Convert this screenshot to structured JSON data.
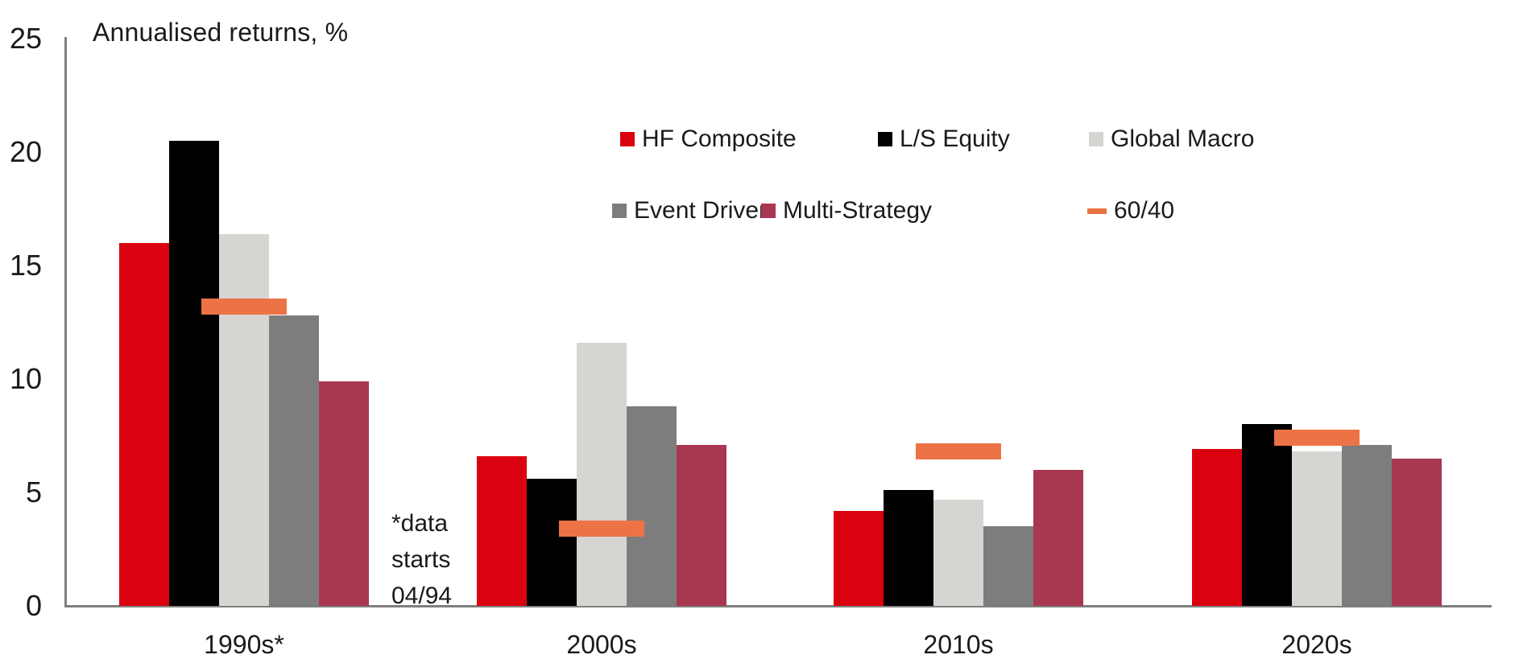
{
  "chart_data": {
    "type": "bar",
    "title": "Annualised returns, %",
    "ylabel": "Annualised returns, %",
    "xlabel": "",
    "ylim": [
      0,
      25
    ],
    "yticks": [
      0,
      5,
      10,
      15,
      20,
      25
    ],
    "grid": false,
    "legend_position": "top-right, two rows",
    "categories": [
      "1990s*",
      "2000s",
      "2010s",
      "2020s"
    ],
    "series": [
      {
        "name": "HF Composite",
        "color": "#da020f",
        "values": [
          16.0,
          6.6,
          4.2,
          6.9
        ]
      },
      {
        "name": "L/S Equity",
        "color": "#000000",
        "values": [
          20.5,
          5.6,
          5.1,
          8.0
        ]
      },
      {
        "name": "Global Macro",
        "color": "#d6d5d2",
        "values": [
          16.4,
          11.6,
          4.7,
          6.8
        ]
      },
      {
        "name": "Event Driven",
        "color": "#7d7d7d",
        "values": [
          12.8,
          8.8,
          3.5,
          7.1
        ]
      },
      {
        "name": "Multi-Strategy",
        "color": "#a83750",
        "values": [
          9.9,
          7.1,
          6.0,
          6.5
        ]
      }
    ],
    "marker_series": {
      "name": "60/40",
      "color": "#ec7346",
      "style": "horizontal dash",
      "values": [
        13.2,
        3.4,
        6.8,
        7.4
      ]
    },
    "annotation": {
      "lines": [
        "*data",
        "starts",
        "04/94"
      ]
    }
  }
}
